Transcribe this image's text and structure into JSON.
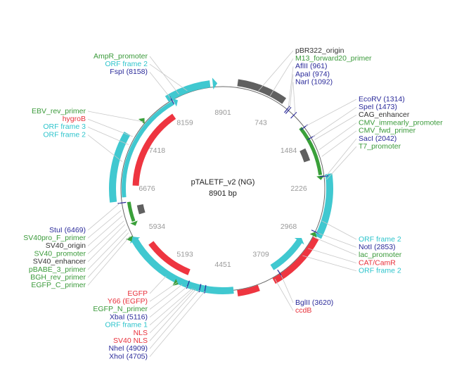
{
  "map": {
    "name": "pTALETF_v2 (NG)",
    "length": "8901 bp",
    "ticks": [
      8901,
      743,
      1484,
      2226,
      2968,
      3709,
      4451,
      5193,
      5934,
      6676,
      7418,
      8159
    ],
    "label_groups": [
      {
        "labels": [
          {
            "text": "AmpR_promoter",
            "color": "#3a9a3a"
          },
          {
            "text": "ORF frame 2",
            "color": "#2ec4cc"
          },
          {
            "text": "FspI (8158)",
            "color": "#2a2a9a"
          }
        ]
      },
      {
        "labels": [
          {
            "text": "EBV_rev_primer",
            "color": "#3a9a3a"
          },
          {
            "text": "hygroB",
            "color": "#e8303a"
          },
          {
            "text": "ORF frame 3",
            "color": "#2ec4cc"
          },
          {
            "text": "ORF frame 2",
            "color": "#2ec4cc"
          }
        ]
      },
      {
        "labels": [
          {
            "text": "StuI (6469)",
            "color": "#2a2a9a"
          },
          {
            "text": "SV40pro_F_primer",
            "color": "#3a9a3a"
          },
          {
            "text": "SV40_origin",
            "color": "#333333"
          },
          {
            "text": "SV40_promoter",
            "color": "#3a9a3a"
          },
          {
            "text": "SV40_enhancer",
            "color": "#333333"
          },
          {
            "text": "pBABE_3_primer",
            "color": "#3a9a3a"
          },
          {
            "text": "BGH_rev_primer",
            "color": "#3a9a3a"
          },
          {
            "text": "EGFP_C_primer",
            "color": "#3a9a3a"
          }
        ]
      },
      {
        "labels": [
          {
            "text": "EGFP",
            "color": "#e8303a"
          },
          {
            "text": "Y66 (EGFP)",
            "color": "#e8303a"
          },
          {
            "text": "EGFP_N_primer",
            "color": "#3a9a3a"
          },
          {
            "text": "XbaI (5116)",
            "color": "#2a2a9a"
          },
          {
            "text": "ORF frame 1",
            "color": "#2ec4cc"
          },
          {
            "text": "NLS",
            "color": "#e8303a"
          },
          {
            "text": "SV40 NLS",
            "color": "#e8303a"
          },
          {
            "text": "NheI (4909)",
            "color": "#2a2a9a"
          },
          {
            "text": "XhoI (4705)",
            "color": "#2a2a9a"
          }
        ]
      },
      {
        "labels": [
          {
            "text": "pBR322_origin",
            "color": "#333333"
          },
          {
            "text": "M13_forward20_primer",
            "color": "#3a9a3a"
          },
          {
            "text": "AflII (961)",
            "color": "#2a2a9a"
          },
          {
            "text": "ApaI (974)",
            "color": "#2a2a9a"
          },
          {
            "text": "NarI (1092)",
            "color": "#2a2a9a"
          }
        ]
      },
      {
        "labels": [
          {
            "text": "EcoRV (1314)",
            "color": "#2a2a9a"
          },
          {
            "text": "SpeI (1473)",
            "color": "#2a2a9a"
          },
          {
            "text": "CAG_enhancer",
            "color": "#333333"
          },
          {
            "text": "CMV_immearly_promoter",
            "color": "#3a9a3a"
          },
          {
            "text": "CMV_fwd_primer",
            "color": "#3a9a3a"
          },
          {
            "text": "SacI (2042)",
            "color": "#2a2a9a"
          },
          {
            "text": "T7_promoter",
            "color": "#3a9a3a"
          }
        ]
      },
      {
        "labels": [
          {
            "text": "ORF frame 2",
            "color": "#2ec4cc"
          },
          {
            "text": "NotI (2853)",
            "color": "#2a2a9a"
          },
          {
            "text": "lac_promoter",
            "color": "#3a9a3a"
          },
          {
            "text": "CAT/CamR",
            "color": "#e8303a"
          },
          {
            "text": "ORF frame 2",
            "color": "#2ec4cc"
          }
        ]
      },
      {
        "labels": [
          {
            "text": "BglII (3620)",
            "color": "#2a2a9a"
          },
          {
            "text": "ccdB",
            "color": "#e8303a"
          }
        ]
      }
    ]
  }
}
